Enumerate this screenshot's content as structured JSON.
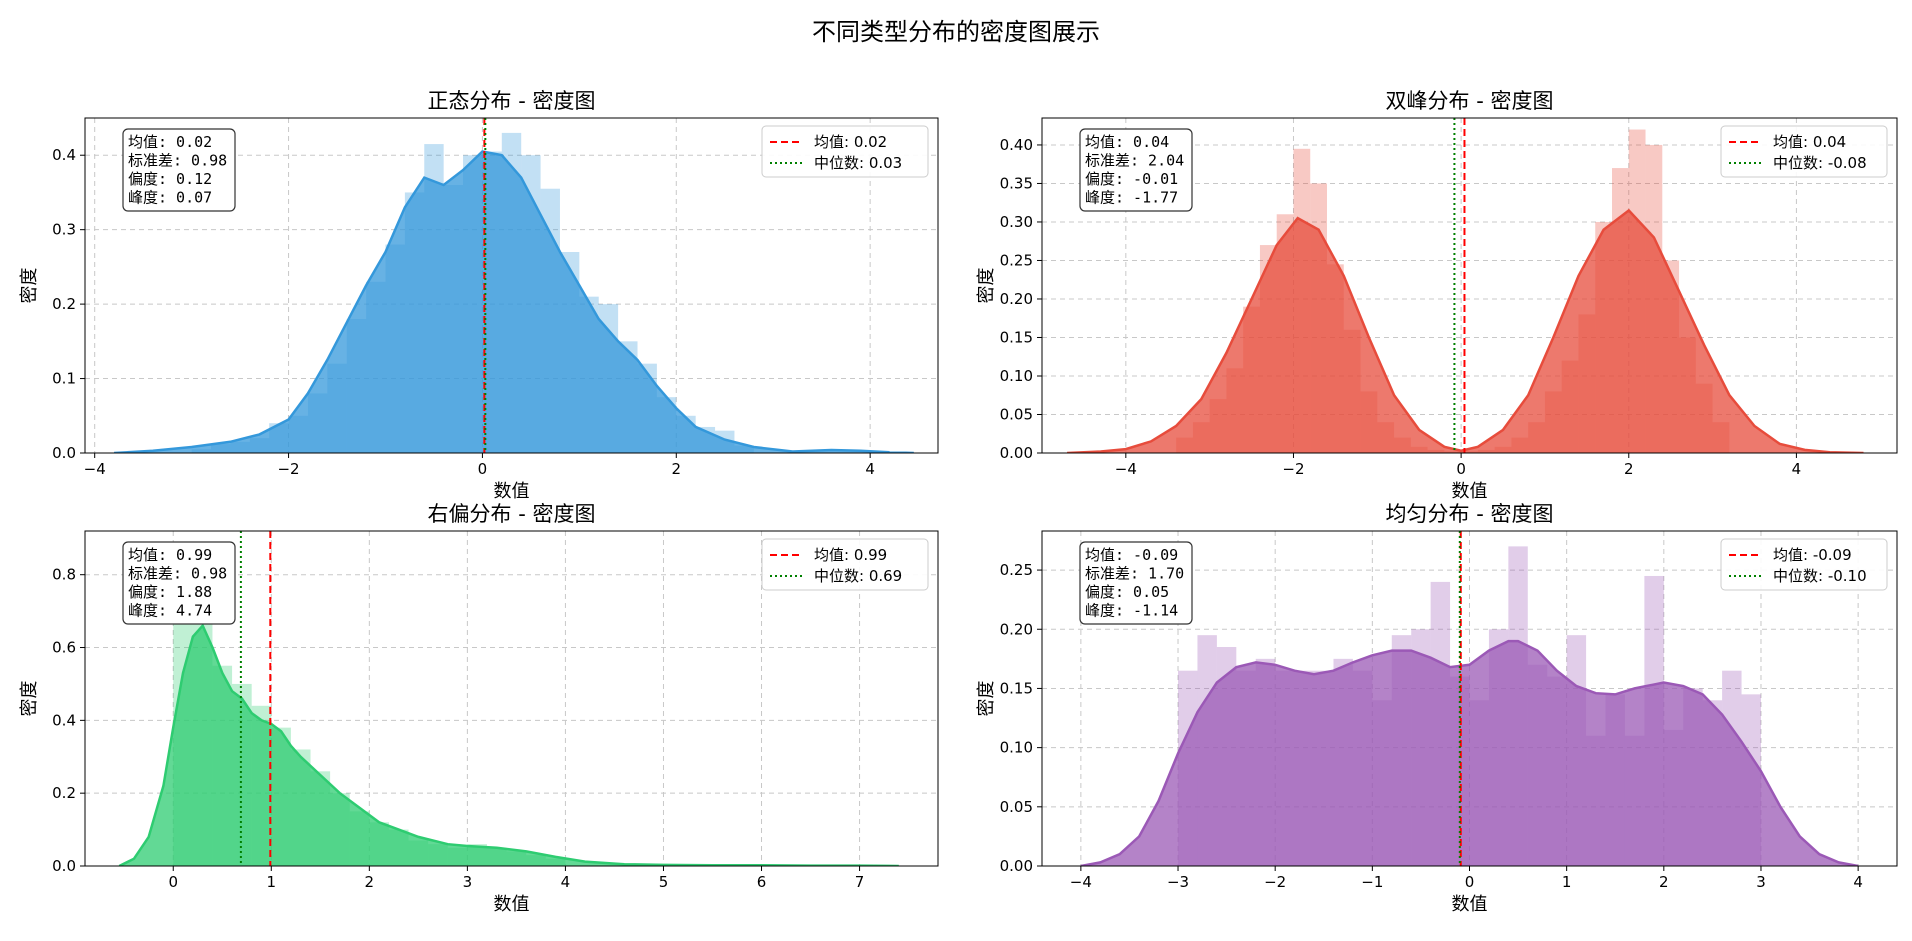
{
  "figure_title": "不同类型分布的密度图展示",
  "colors": {
    "mean_line": "#ff0000",
    "median_line": "#008000",
    "normal": "#3498db",
    "bimodal": "#e74c3c",
    "skewed": "#2ecc71",
    "uniform": "#9b59b6",
    "grid": "#c8c8c8"
  },
  "chart_data": [
    {
      "type": "area",
      "title": "正态分布 - 密度图",
      "xlabel": "数值",
      "ylabel": "密度",
      "color": "#3498db",
      "xlim": [
        -4.1,
        4.7
      ],
      "ylim": [
        0,
        0.45
      ],
      "xticks": [
        -4,
        -2,
        0,
        2,
        4
      ],
      "yticks": [
        0.0,
        0.1,
        0.2,
        0.3,
        0.4
      ],
      "grid": true,
      "legend_position": "top-right",
      "stats_box": [
        "均值: 0.02",
        "标准差: 0.98",
        "偏度: 0.12",
        "峰度: 0.07"
      ],
      "mean": 0.02,
      "median": 0.03,
      "legend": [
        "均值: 0.02",
        "中位数: 0.03"
      ],
      "kde": {
        "x": [
          -3.8,
          -3.4,
          -3.0,
          -2.6,
          -2.3,
          -2.0,
          -1.8,
          -1.6,
          -1.4,
          -1.2,
          -1.0,
          -0.8,
          -0.6,
          -0.4,
          -0.2,
          0.0,
          0.2,
          0.4,
          0.6,
          0.8,
          1.0,
          1.2,
          1.4,
          1.6,
          1.8,
          2.0,
          2.2,
          2.5,
          2.8,
          3.2,
          3.6,
          3.9,
          4.2,
          4.45
        ],
        "y": [
          0.0,
          0.003,
          0.008,
          0.015,
          0.025,
          0.045,
          0.08,
          0.125,
          0.175,
          0.225,
          0.27,
          0.33,
          0.37,
          0.36,
          0.38,
          0.405,
          0.4,
          0.37,
          0.32,
          0.27,
          0.225,
          0.18,
          0.15,
          0.125,
          0.09,
          0.06,
          0.035,
          0.018,
          0.008,
          0.002,
          0.004,
          0.003,
          0.001,
          0.0
        ]
      },
      "histogram": {
        "edges": [
          -3.0,
          -2.8,
          -2.6,
          -2.4,
          -2.2,
          -2.0,
          -1.8,
          -1.6,
          -1.4,
          -1.2,
          -1.0,
          -0.8,
          -0.6,
          -0.4,
          -0.2,
          0.0,
          0.2,
          0.4,
          0.6,
          0.8,
          1.0,
          1.2,
          1.4,
          1.6,
          1.8,
          2.0,
          2.2,
          2.4,
          2.6,
          2.8
        ],
        "values": [
          0.005,
          0.012,
          0.015,
          0.02,
          0.04,
          0.05,
          0.08,
          0.12,
          0.18,
          0.23,
          0.28,
          0.35,
          0.415,
          0.36,
          0.4,
          0.405,
          0.43,
          0.4,
          0.355,
          0.27,
          0.21,
          0.2,
          0.15,
          0.12,
          0.075,
          0.05,
          0.035,
          0.03,
          0.01
        ]
      }
    },
    {
      "type": "area",
      "title": "双峰分布 - 密度图",
      "xlabel": "数值",
      "ylabel": "密度",
      "color": "#e74c3c",
      "xlim": [
        -5.0,
        5.2
      ],
      "ylim": [
        0,
        0.435
      ],
      "xticks": [
        -4,
        -2,
        0,
        2,
        4
      ],
      "yticks": [
        0.0,
        0.05,
        0.1,
        0.15,
        0.2,
        0.25,
        0.3,
        0.35,
        0.4
      ],
      "ytick_labels": [
        "0.00",
        "0.05",
        "0.10",
        "0.15",
        "0.20",
        "0.25",
        "0.30",
        "0.35",
        "0.40"
      ],
      "grid": true,
      "legend_position": "top-right",
      "stats_box": [
        "均值: 0.04",
        "标准差: 2.04",
        "偏度: -0.01",
        "峰度: -1.77"
      ],
      "mean": 0.04,
      "median": -0.08,
      "legend": [
        "均值: 0.04",
        "中位数: -0.08"
      ],
      "kde": {
        "x": [
          -4.7,
          -4.3,
          -4.0,
          -3.7,
          -3.4,
          -3.1,
          -2.8,
          -2.5,
          -2.2,
          -1.95,
          -1.7,
          -1.4,
          -1.1,
          -0.8,
          -0.5,
          -0.2,
          0.0,
          0.2,
          0.5,
          0.8,
          1.1,
          1.4,
          1.7,
          2.0,
          2.3,
          2.6,
          2.9,
          3.2,
          3.5,
          3.8,
          4.1,
          4.4,
          4.8
        ],
        "y": [
          0.0,
          0.002,
          0.005,
          0.015,
          0.035,
          0.07,
          0.13,
          0.2,
          0.27,
          0.305,
          0.29,
          0.23,
          0.15,
          0.075,
          0.03,
          0.008,
          0.003,
          0.008,
          0.03,
          0.075,
          0.15,
          0.23,
          0.29,
          0.315,
          0.28,
          0.21,
          0.14,
          0.075,
          0.035,
          0.012,
          0.004,
          0.001,
          0.0
        ]
      },
      "histogram": {
        "edges": [
          -3.4,
          -3.2,
          -3.0,
          -2.8,
          -2.6,
          -2.4,
          -2.2,
          -2.0,
          -1.8,
          -1.6,
          -1.4,
          -1.2,
          -1.0,
          -0.8,
          -0.6,
          -0.4,
          -0.2,
          0.0,
          0.2,
          0.4,
          0.6,
          0.8,
          1.0,
          1.2,
          1.4,
          1.6,
          1.8,
          2.0,
          2.2,
          2.4,
          2.6,
          2.8,
          3.0,
          3.2
        ],
        "values": [
          0.02,
          0.04,
          0.07,
          0.11,
          0.19,
          0.27,
          0.31,
          0.395,
          0.35,
          0.245,
          0.16,
          0.08,
          0.04,
          0.02,
          0.008,
          0.004,
          0.002,
          0.002,
          0.004,
          0.008,
          0.02,
          0.04,
          0.08,
          0.12,
          0.18,
          0.3,
          0.37,
          0.42,
          0.4,
          0.25,
          0.15,
          0.09,
          0.04
        ]
      }
    },
    {
      "type": "area",
      "title": "右偏分布 - 密度图",
      "xlabel": "数值",
      "ylabel": "密度",
      "color": "#2ecc71",
      "xlim": [
        -0.9,
        7.8
      ],
      "ylim": [
        0,
        0.92
      ],
      "xticks": [
        0,
        1,
        2,
        3,
        4,
        5,
        6,
        7
      ],
      "yticks": [
        0.0,
        0.2,
        0.4,
        0.6,
        0.8
      ],
      "grid": true,
      "legend_position": "top-right",
      "stats_box": [
        "均值: 0.99",
        "标准差: 0.98",
        "偏度: 1.88",
        "峰度: 4.74"
      ],
      "mean": 0.99,
      "median": 0.69,
      "legend": [
        "均值: 0.99",
        "中位数: 0.69"
      ],
      "kde": {
        "x": [
          -0.55,
          -0.4,
          -0.25,
          -0.1,
          0.0,
          0.1,
          0.2,
          0.3,
          0.4,
          0.5,
          0.6,
          0.7,
          0.8,
          0.9,
          1.0,
          1.1,
          1.2,
          1.3,
          1.5,
          1.7,
          1.9,
          2.1,
          2.3,
          2.5,
          2.8,
          3.0,
          3.3,
          3.6,
          3.9,
          4.2,
          4.6,
          5.0,
          5.5,
          6.0,
          6.5,
          7.0,
          7.4
        ],
        "y": [
          0.0,
          0.02,
          0.08,
          0.22,
          0.38,
          0.53,
          0.63,
          0.66,
          0.6,
          0.53,
          0.48,
          0.46,
          0.42,
          0.4,
          0.39,
          0.37,
          0.33,
          0.3,
          0.25,
          0.2,
          0.16,
          0.12,
          0.1,
          0.08,
          0.06,
          0.055,
          0.05,
          0.04,
          0.025,
          0.012,
          0.005,
          0.003,
          0.002,
          0.002,
          0.001,
          0.001,
          0.0
        ]
      },
      "histogram": {
        "edges": [
          0.0,
          0.2,
          0.4,
          0.6,
          0.8,
          1.0,
          1.2,
          1.4,
          1.6,
          1.8,
          2.0,
          2.2,
          2.4,
          2.6,
          2.8,
          3.0,
          3.2,
          3.4,
          3.6,
          3.8,
          4.0
        ],
        "values": [
          0.7,
          0.7,
          0.55,
          0.5,
          0.44,
          0.38,
          0.32,
          0.26,
          0.2,
          0.15,
          0.12,
          0.1,
          0.07,
          0.06,
          0.05,
          0.06,
          0.05,
          0.04,
          0.03,
          0.02
        ]
      }
    },
    {
      "type": "area",
      "title": "均匀分布 - 密度图",
      "xlabel": "数值",
      "ylabel": "密度",
      "color": "#9b59b6",
      "xlim": [
        -4.4,
        4.4
      ],
      "ylim": [
        0,
        0.283
      ],
      "xticks": [
        -4,
        -3,
        -2,
        -1,
        0,
        1,
        2,
        3,
        4
      ],
      "yticks": [
        0.0,
        0.05,
        0.1,
        0.15,
        0.2,
        0.25
      ],
      "ytick_labels": [
        "0.00",
        "0.05",
        "0.10",
        "0.15",
        "0.20",
        "0.25"
      ],
      "grid": true,
      "legend_position": "top-right",
      "stats_box": [
        "均值: -0.09",
        "标准差: 1.70",
        "偏度: 0.05",
        "峰度: -1.14"
      ],
      "mean": -0.09,
      "median": -0.1,
      "legend": [
        "均值: -0.09",
        "中位数: -0.10"
      ],
      "kde": {
        "x": [
          -4.0,
          -3.8,
          -3.6,
          -3.4,
          -3.2,
          -3.0,
          -2.8,
          -2.6,
          -2.4,
          -2.2,
          -2.0,
          -1.8,
          -1.6,
          -1.4,
          -1.2,
          -1.0,
          -0.8,
          -0.6,
          -0.4,
          -0.2,
          0.0,
          0.2,
          0.4,
          0.5,
          0.7,
          0.9,
          1.1,
          1.3,
          1.5,
          1.7,
          2.0,
          2.2,
          2.4,
          2.6,
          2.8,
          3.0,
          3.2,
          3.4,
          3.6,
          3.8,
          4.0
        ],
        "y": [
          0.0,
          0.003,
          0.01,
          0.025,
          0.055,
          0.095,
          0.13,
          0.155,
          0.168,
          0.172,
          0.17,
          0.165,
          0.162,
          0.165,
          0.172,
          0.178,
          0.182,
          0.182,
          0.176,
          0.168,
          0.17,
          0.182,
          0.19,
          0.19,
          0.182,
          0.165,
          0.152,
          0.146,
          0.145,
          0.15,
          0.155,
          0.152,
          0.145,
          0.128,
          0.105,
          0.08,
          0.05,
          0.025,
          0.01,
          0.003,
          0.0
        ]
      },
      "histogram": {
        "edges": [
          -3.0,
          -2.8,
          -2.6,
          -2.4,
          -2.2,
          -2.0,
          -1.8,
          -1.6,
          -1.4,
          -1.2,
          -1.0,
          -0.8,
          -0.6,
          -0.4,
          -0.2,
          0.0,
          0.2,
          0.4,
          0.6,
          0.8,
          1.0,
          1.2,
          1.4,
          1.6,
          1.8,
          2.0,
          2.2,
          2.4,
          2.6,
          2.8,
          3.0
        ],
        "values": [
          0.165,
          0.195,
          0.185,
          0.165,
          0.175,
          0.165,
          0.165,
          0.165,
          0.175,
          0.165,
          0.14,
          0.195,
          0.2,
          0.24,
          0.16,
          0.14,
          0.2,
          0.27,
          0.17,
          0.16,
          0.195,
          0.11,
          0.145,
          0.11,
          0.245,
          0.115,
          0.15,
          0.14,
          0.165,
          0.145
        ]
      }
    }
  ]
}
